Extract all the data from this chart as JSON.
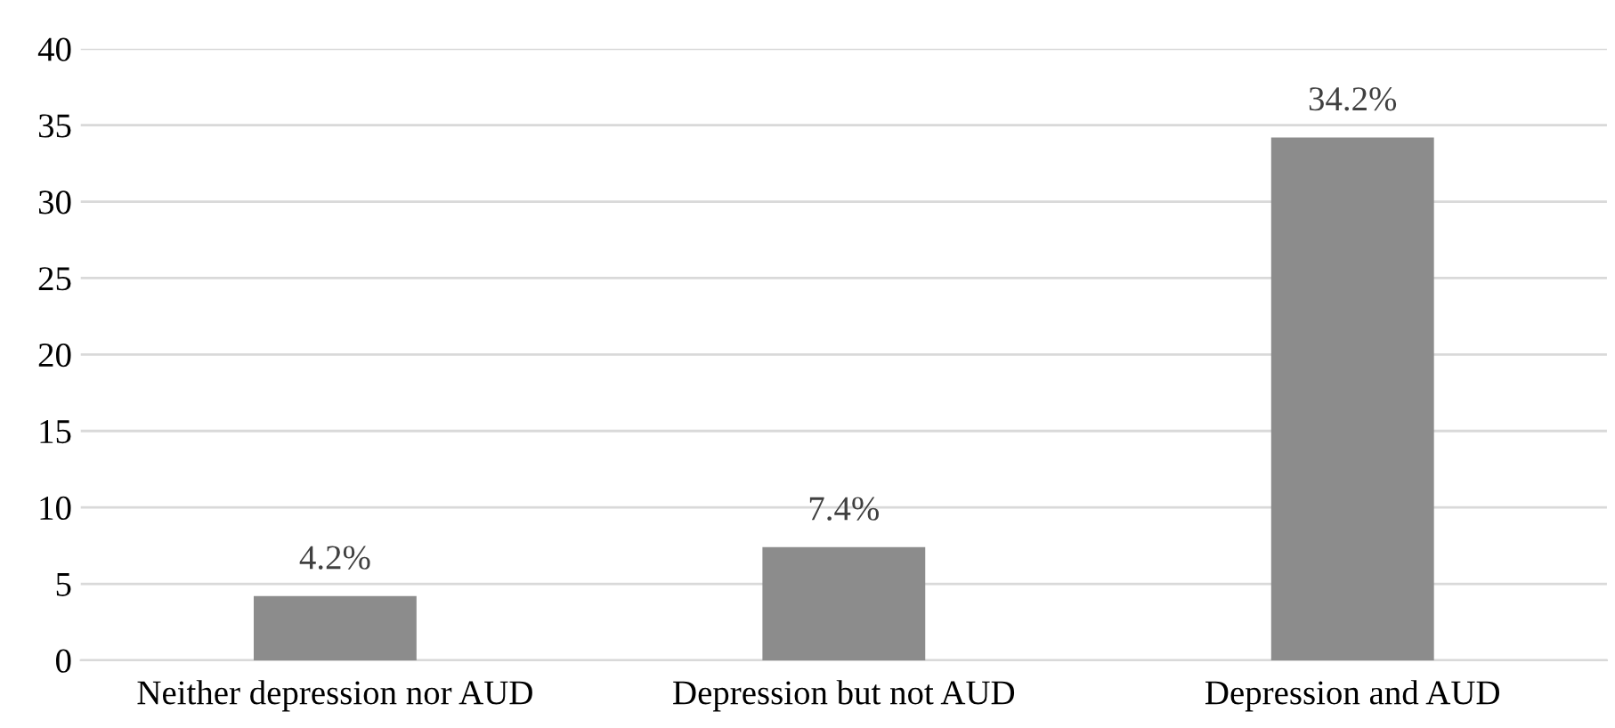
{
  "chart_data": {
    "type": "bar",
    "categories": [
      "Neither depression nor AUD",
      "Depression but not AUD",
      "Depression and AUD"
    ],
    "values": [
      4.2,
      7.4,
      34.2
    ],
    "value_labels": [
      "4.2%",
      "7.4%",
      "34.2%"
    ],
    "color": "#8c8c8c",
    "ylim": [
      0,
      40
    ],
    "yticks": [
      0,
      5,
      10,
      15,
      20,
      25,
      30,
      35,
      40
    ],
    "grid": "y"
  }
}
